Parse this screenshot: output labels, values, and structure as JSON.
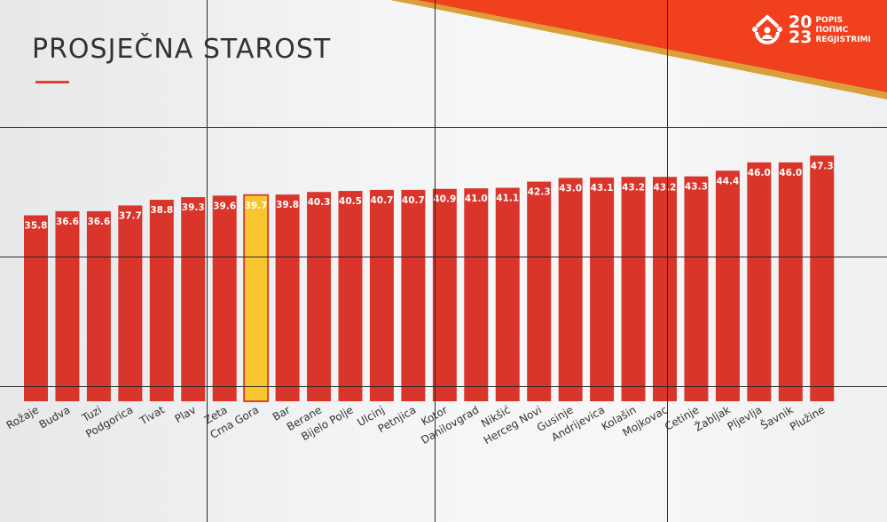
{
  "title": "PROSJEČNA STAROST",
  "logo": {
    "year_top": "20",
    "year_bottom": "23",
    "line1": "POPIS",
    "line2": "ПОПИС",
    "line3": "REGJISTRIMI"
  },
  "colors": {
    "bar": "#d9352a",
    "highlight": "#f7c52e",
    "banner": "#f0401e",
    "banner_edge": "#d9a03a"
  },
  "chart_data": {
    "type": "bar",
    "title": "PROSJEČNA STAROST",
    "xlabel": "",
    "ylabel": "",
    "ylim": [
      0,
      50
    ],
    "grid": false,
    "highlight": "Crna Gora",
    "categories": [
      "Rožaje",
      "Budva",
      "Tuzi",
      "Podgorica",
      "Tivat",
      "Plav",
      "Zeta",
      "Crna Gora",
      "Bar",
      "Berane",
      "Bijelo Polje",
      "Ulcinj",
      "Petnjica",
      "Kotor",
      "Danilovgrad",
      "Nikšić",
      "Herceg Novi",
      "Gusinje",
      "Andrijevica",
      "Kolašin",
      "Mojkovac",
      "Cetinje",
      "Žabljak",
      "Pljevlja",
      "Šavnik",
      "Plužine"
    ],
    "values": [
      35.8,
      36.6,
      36.6,
      37.7,
      38.8,
      39.3,
      39.6,
      39.7,
      39.8,
      40.3,
      40.5,
      40.7,
      40.7,
      40.9,
      41.0,
      41.1,
      42.3,
      43.0,
      43.1,
      43.2,
      43.2,
      43.3,
      44.4,
      46.0,
      46.0,
      47.3
    ],
    "data_labels": [
      "35.8",
      "36.6",
      "36.6",
      "37.7",
      "38.8",
      "39.3",
      "39.6",
      "39.7",
      "39.8",
      "40.3",
      "40.5",
      "40.7",
      "40.7",
      "40.9",
      "41.0",
      "41.1",
      "42.3",
      "43.0",
      "43.1",
      "43.2",
      "43.2",
      "43.3",
      "44.4",
      "46.0",
      "46.0",
      "47.3"
    ]
  }
}
